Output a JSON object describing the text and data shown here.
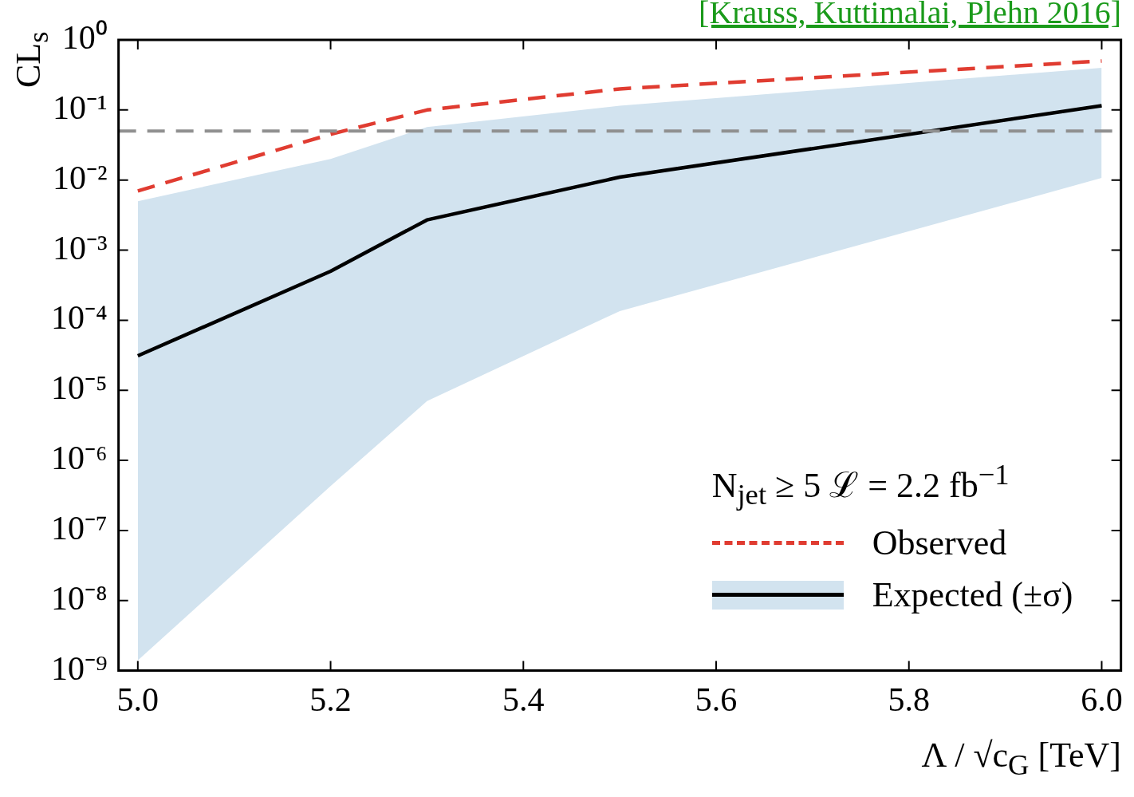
{
  "chart_data": {
    "type": "line",
    "x": [
      5.0,
      5.2,
      5.3,
      5.5,
      6.0
    ],
    "series": [
      {
        "name": "Observed",
        "color": "#e03c31",
        "line_style": "dashed",
        "values": [
          0.007,
          0.045,
          0.1,
          0.2,
          0.5
        ]
      },
      {
        "name": "Expected (±σ)",
        "color": "#000000",
        "line_style": "solid",
        "values": [
          3.1e-05,
          0.0005,
          0.0027,
          0.011,
          0.115
        ],
        "lower": [
          1.4e-09,
          4.3e-07,
          7e-06,
          0.000135,
          0.0107
        ],
        "upper": [
          0.005,
          0.02,
          0.057,
          0.115,
          0.4
        ]
      }
    ],
    "log": "y",
    "marker": "none",
    "xlim": [
      4.98,
      6.02
    ],
    "xticks": [
      {
        "value": 5,
        "label": "5.0"
      },
      {
        "value": 5.2,
        "label": "5.2"
      },
      {
        "value": 5.4,
        "label": "5.4"
      },
      {
        "value": 5.6,
        "label": "5.6"
      },
      {
        "value": 5.8,
        "label": "5.8"
      },
      {
        "value": 6,
        "label": "6.0"
      }
    ],
    "ylim": [
      1e-09,
      1
    ],
    "yticks": [
      {
        "value": 1,
        "label": "10⁰"
      },
      {
        "value": 0.1,
        "label": "10⁻¹"
      },
      {
        "value": 0.01,
        "label": "10⁻²"
      },
      {
        "value": 0.001,
        "label": "10⁻³"
      },
      {
        "value": 0.0001,
        "label": "10⁻⁴"
      },
      {
        "value": 1e-05,
        "label": "10⁻⁵"
      },
      {
        "value": 1e-06,
        "label": "10⁻⁶"
      },
      {
        "value": 1e-07,
        "label": "10⁻⁷"
      },
      {
        "value": 1e-08,
        "label": "10⁻⁸"
      },
      {
        "value": 1e-09,
        "label": "10⁻⁹"
      }
    ],
    "xlabel": "Λ / √c$_{G}$  [TeV]",
    "ylabel": "CL$_{s}$",
    "legend": "bottom right",
    "legend_title": "N$_{jet}$ ≥ 5  ℒ = 2.2 fb$^{−1}$",
    "ref_lines": [
      {
        "axis": "y",
        "value": 0.05,
        "color": "#909090",
        "line_style": "dashed"
      }
    ],
    "annotations": [
      "[Krauss, Kuttimalai, Plehn 2016]"
    ]
  }
}
